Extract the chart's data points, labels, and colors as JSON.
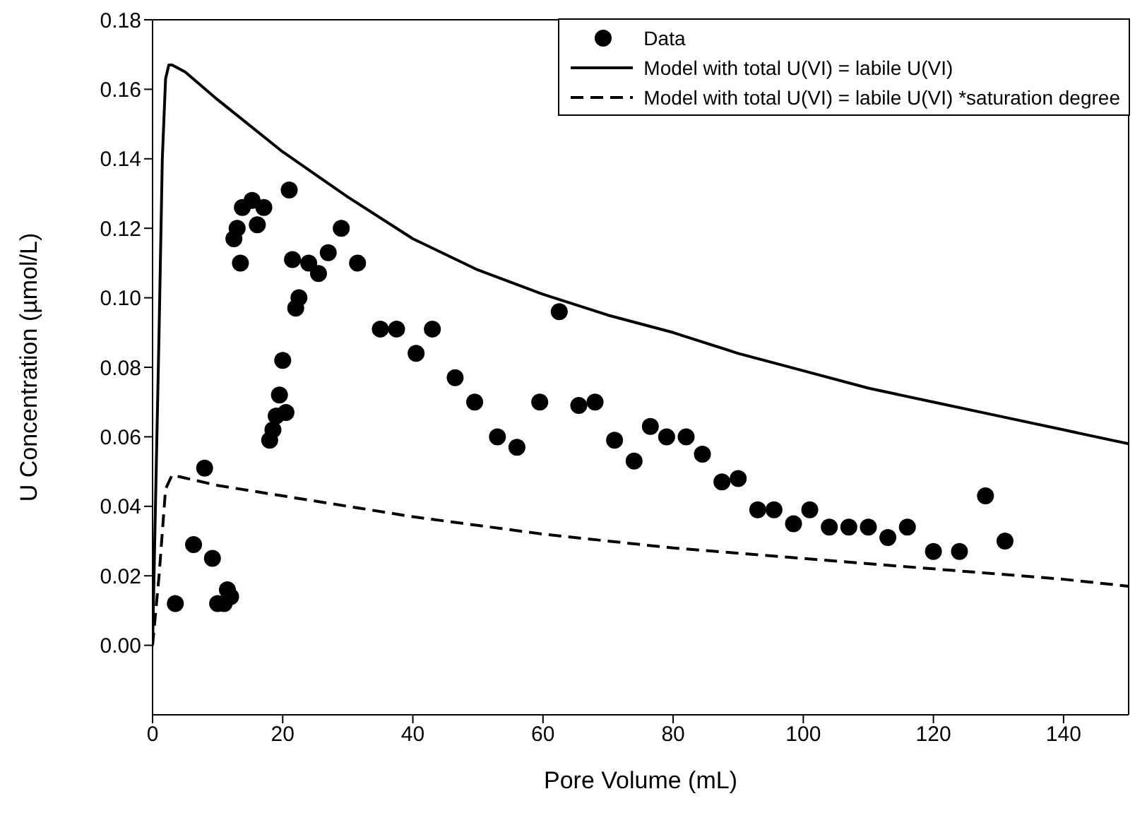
{
  "chart_data": {
    "type": "scatter",
    "xlabel": "Pore Volume (mL)",
    "ylabel": "U Concentration (µmol/L)",
    "xlim": [
      0,
      150
    ],
    "xticks": [
      0,
      20,
      40,
      60,
      80,
      100,
      120,
      140
    ],
    "ylim": [
      -0.02,
      0.18
    ],
    "yticks": [
      {
        "value": 0,
        "label": "0.00"
      },
      {
        "value": 0.02,
        "label": "0.02"
      },
      {
        "value": 0.04,
        "label": "0.04"
      },
      {
        "value": 0.06,
        "label": "0.06"
      },
      {
        "value": 0.08,
        "label": "0.08"
      },
      {
        "value": 0.1,
        "label": "0.10"
      },
      {
        "value": 0.12,
        "label": "0.12"
      },
      {
        "value": 0.14,
        "label": "0.14"
      },
      {
        "value": 0.16,
        "label": "0.16"
      },
      {
        "value": 0.18,
        "label": "0.18"
      }
    ],
    "grid": false,
    "legend": "top right",
    "series": [
      {
        "name": "Data",
        "marker": "circle",
        "color": "#000000",
        "x": [
          3.5,
          6.3,
          8,
          9.2,
          10,
          11,
          11.5,
          12,
          12.5,
          13,
          13.5,
          13.8,
          15.3,
          16.1,
          17.1,
          18,
          18.5,
          19,
          19.5,
          20,
          20.5,
          21,
          21.5,
          22,
          22.5,
          24,
          25.5,
          27,
          29,
          31.5,
          35,
          37.5,
          40.5,
          43,
          46.5,
          49.5,
          53,
          56,
          59.5,
          62.5,
          65.5,
          68,
          71,
          74,
          76.5,
          79,
          82,
          84.5,
          87.5,
          90,
          93,
          95.5,
          98.5,
          101,
          104,
          107,
          110,
          113,
          116,
          120,
          124,
          128,
          131
        ],
        "values": [
          0.012,
          0.029,
          0.051,
          0.025,
          0.012,
          0.012,
          0.016,
          0.014,
          0.117,
          0.12,
          0.11,
          0.126,
          0.128,
          0.121,
          0.126,
          0.059,
          0.062,
          0.066,
          0.072,
          0.082,
          0.067,
          0.131,
          0.111,
          0.097,
          0.1,
          0.11,
          0.107,
          0.113,
          0.12,
          0.11,
          0.091,
          0.091,
          0.084,
          0.091,
          0.077,
          0.07,
          0.06,
          0.057,
          0.07,
          0.096,
          0.069,
          0.07,
          0.059,
          0.053,
          0.063,
          0.06,
          0.06,
          0.055,
          0.047,
          0.048,
          0.039,
          0.039,
          0.035,
          0.039,
          0.034,
          0.034,
          0.034,
          0.031,
          0.034,
          0.027,
          0.027,
          0.043,
          0.03
        ]
      },
      {
        "name": "Model with total U(VI) = labile U(VI)",
        "type": "line",
        "marker": "none",
        "line_style": "solid",
        "color": "#000000",
        "x": [
          0,
          1,
          1.5,
          2,
          2.5,
          3,
          5,
          10,
          20,
          30,
          40,
          50,
          60,
          70,
          80,
          90,
          100,
          110,
          120,
          130,
          140,
          150
        ],
        "values": [
          0,
          0.09,
          0.14,
          0.163,
          0.167,
          0.167,
          0.165,
          0.157,
          0.142,
          0.129,
          0.117,
          0.108,
          0.101,
          0.095,
          0.09,
          0.084,
          0.079,
          0.074,
          0.07,
          0.066,
          0.062,
          0.058
        ]
      },
      {
        "name": "Model with total U(VI) = labile U(VI) *saturation degree",
        "type": "line",
        "marker": "none",
        "line_style": "dashed",
        "color": "#000000",
        "x": [
          0,
          1,
          2,
          3,
          10,
          20,
          40,
          60,
          80,
          100,
          120,
          140,
          150
        ],
        "values": [
          0,
          0.02,
          0.045,
          0.049,
          0.046,
          0.043,
          0.037,
          0.032,
          0.028,
          0.025,
          0.022,
          0.019,
          0.017
        ]
      }
    ]
  }
}
